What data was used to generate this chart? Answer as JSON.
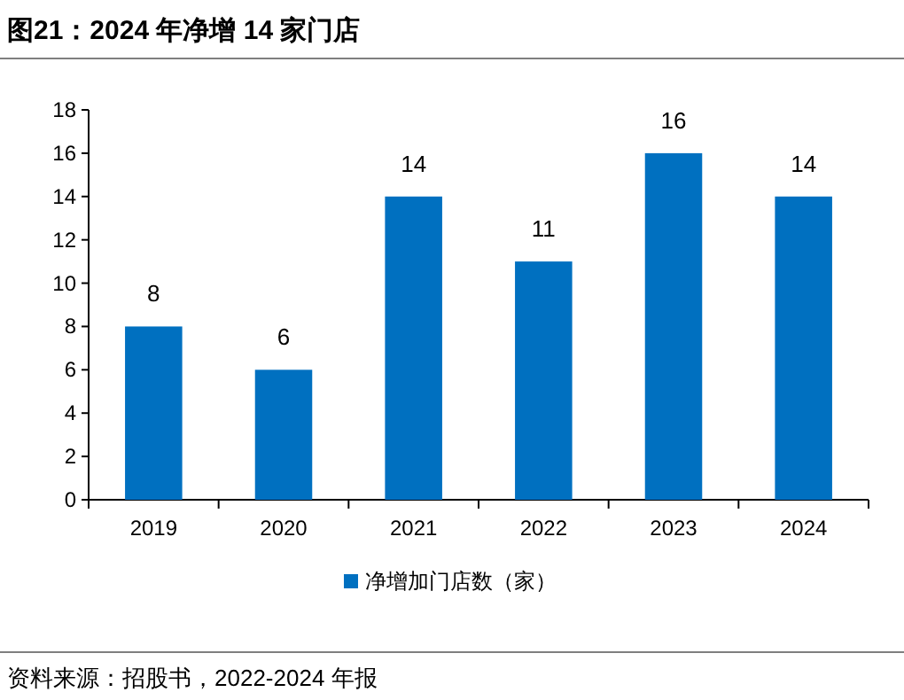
{
  "chart_data": {
    "type": "bar",
    "title": "图21：2024 年净增 14 家门店",
    "categories": [
      "2019",
      "2020",
      "2021",
      "2022",
      "2023",
      "2024"
    ],
    "series": [
      {
        "name": "净增加门店数（家）",
        "color": "#0070c0",
        "values": [
          8,
          6,
          14,
          11,
          16,
          14
        ]
      }
    ],
    "ylim": [
      0,
      18
    ],
    "yticks": [
      0,
      2,
      4,
      6,
      8,
      10,
      12,
      14,
      16,
      18
    ],
    "data_labels": true,
    "legend": "bottom",
    "grid": false,
    "annotations": [
      "资料来源：招股书，2022-2024 年报"
    ]
  }
}
